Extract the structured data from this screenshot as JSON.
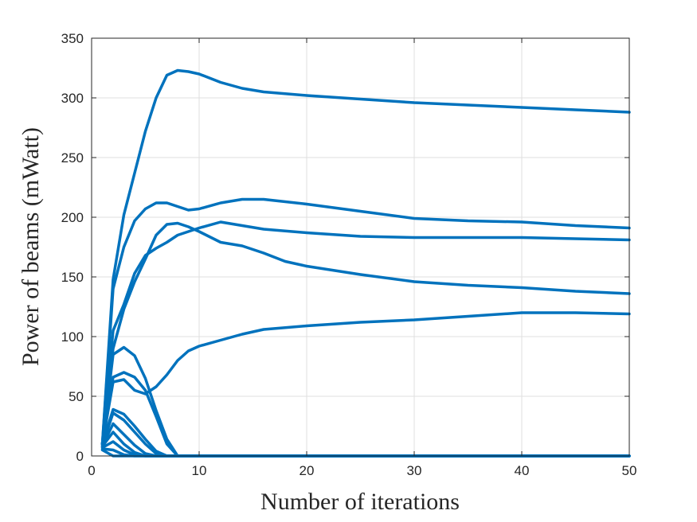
{
  "chart_data": {
    "type": "line",
    "xlabel": "Number of iterations",
    "ylabel": "Power of beams (mWatt)",
    "xlim": [
      0,
      50
    ],
    "ylim": [
      0,
      350
    ],
    "x_ticks": [
      0,
      10,
      20,
      30,
      40,
      50
    ],
    "y_ticks": [
      0,
      50,
      100,
      150,
      200,
      250,
      300,
      350
    ],
    "grid": true,
    "line_color": "#0072BD",
    "series": [
      {
        "points": [
          [
            1,
            10
          ],
          [
            2,
            148
          ],
          [
            3,
            202
          ],
          [
            4,
            237
          ],
          [
            5,
            272
          ],
          [
            6,
            300
          ],
          [
            7,
            319
          ],
          [
            8,
            323
          ],
          [
            9,
            322
          ],
          [
            10,
            320
          ],
          [
            12,
            313
          ],
          [
            14,
            308
          ],
          [
            16,
            305
          ],
          [
            20,
            302
          ],
          [
            25,
            299
          ],
          [
            30,
            296
          ],
          [
            35,
            294
          ],
          [
            40,
            292
          ],
          [
            45,
            290
          ],
          [
            50,
            288
          ]
        ]
      },
      {
        "points": [
          [
            1,
            10
          ],
          [
            2,
            140
          ],
          [
            3,
            175
          ],
          [
            4,
            197
          ],
          [
            5,
            207
          ],
          [
            6,
            212
          ],
          [
            7,
            212
          ],
          [
            8,
            209
          ],
          [
            9,
            206
          ],
          [
            10,
            207
          ],
          [
            12,
            212
          ],
          [
            14,
            215
          ],
          [
            16,
            215
          ],
          [
            20,
            211
          ],
          [
            25,
            205
          ],
          [
            30,
            199
          ],
          [
            35,
            197
          ],
          [
            40,
            196
          ],
          [
            45,
            193
          ],
          [
            50,
            191
          ]
        ]
      },
      {
        "points": [
          [
            1,
            10
          ],
          [
            2,
            105
          ],
          [
            3,
            127
          ],
          [
            4,
            153
          ],
          [
            5,
            168
          ],
          [
            6,
            174
          ],
          [
            7,
            179
          ],
          [
            8,
            185
          ],
          [
            10,
            191
          ],
          [
            12,
            196
          ],
          [
            14,
            193
          ],
          [
            16,
            190
          ],
          [
            20,
            187
          ],
          [
            25,
            184
          ],
          [
            30,
            183
          ],
          [
            35,
            183
          ],
          [
            40,
            183
          ],
          [
            45,
            182
          ],
          [
            50,
            181
          ]
        ]
      },
      {
        "points": [
          [
            1,
            10
          ],
          [
            2,
            90
          ],
          [
            3,
            123
          ],
          [
            4,
            146
          ],
          [
            5,
            165
          ],
          [
            6,
            185
          ],
          [
            7,
            194
          ],
          [
            8,
            195
          ],
          [
            9,
            192
          ],
          [
            10,
            188
          ],
          [
            12,
            179
          ],
          [
            14,
            176
          ],
          [
            16,
            170
          ],
          [
            18,
            163
          ],
          [
            20,
            159
          ],
          [
            25,
            152
          ],
          [
            30,
            146
          ],
          [
            35,
            143
          ],
          [
            40,
            141
          ],
          [
            45,
            138
          ],
          [
            50,
            136
          ]
        ]
      },
      {
        "points": [
          [
            1,
            10
          ],
          [
            2,
            62
          ],
          [
            3,
            64
          ],
          [
            4,
            55
          ],
          [
            5,
            52
          ],
          [
            6,
            58
          ],
          [
            7,
            68
          ],
          [
            8,
            80
          ],
          [
            9,
            88
          ],
          [
            10,
            92
          ],
          [
            12,
            97
          ],
          [
            14,
            102
          ],
          [
            16,
            106
          ],
          [
            20,
            109
          ],
          [
            25,
            112
          ],
          [
            30,
            114
          ],
          [
            35,
            117
          ],
          [
            40,
            120
          ],
          [
            45,
            120
          ],
          [
            50,
            119
          ]
        ]
      },
      {
        "points": [
          [
            1,
            10
          ],
          [
            2,
            85
          ],
          [
            3,
            91
          ],
          [
            4,
            84
          ],
          [
            5,
            65
          ],
          [
            6,
            38
          ],
          [
            7,
            14
          ],
          [
            8,
            0
          ],
          [
            10,
            0
          ],
          [
            20,
            0
          ],
          [
            30,
            0
          ],
          [
            40,
            0
          ],
          [
            50,
            0
          ]
        ]
      },
      {
        "points": [
          [
            1,
            10
          ],
          [
            2,
            66
          ],
          [
            3,
            70
          ],
          [
            4,
            66
          ],
          [
            5,
            55
          ],
          [
            6,
            33
          ],
          [
            7,
            10
          ],
          [
            8,
            0
          ],
          [
            10,
            0
          ],
          [
            20,
            0
          ],
          [
            30,
            0
          ],
          [
            40,
            0
          ],
          [
            50,
            0
          ]
        ]
      },
      {
        "points": [
          [
            1,
            10
          ],
          [
            2,
            39
          ],
          [
            3,
            35
          ],
          [
            4,
            25
          ],
          [
            5,
            14
          ],
          [
            6,
            4
          ],
          [
            7,
            0
          ],
          [
            10,
            0
          ],
          [
            20,
            0
          ],
          [
            30,
            0
          ],
          [
            40,
            0
          ],
          [
            50,
            0
          ]
        ]
      },
      {
        "points": [
          [
            1,
            9
          ],
          [
            2,
            36
          ],
          [
            3,
            30
          ],
          [
            4,
            20
          ],
          [
            5,
            10
          ],
          [
            6,
            2
          ],
          [
            7,
            0
          ],
          [
            10,
            0
          ],
          [
            20,
            0
          ],
          [
            30,
            0
          ],
          [
            40,
            0
          ],
          [
            50,
            0
          ]
        ]
      },
      {
        "points": [
          [
            1,
            8
          ],
          [
            2,
            27
          ],
          [
            3,
            18
          ],
          [
            4,
            9
          ],
          [
            5,
            2
          ],
          [
            6,
            0
          ],
          [
            10,
            0
          ],
          [
            20,
            0
          ],
          [
            30,
            0
          ],
          [
            40,
            0
          ],
          [
            50,
            0
          ]
        ]
      },
      {
        "points": [
          [
            1,
            8
          ],
          [
            2,
            20
          ],
          [
            3,
            10
          ],
          [
            4,
            3
          ],
          [
            5,
            0
          ],
          [
            10,
            0
          ],
          [
            20,
            0
          ],
          [
            30,
            0
          ],
          [
            40,
            0
          ],
          [
            50,
            0
          ]
        ]
      },
      {
        "points": [
          [
            1,
            7
          ],
          [
            2,
            12
          ],
          [
            3,
            5
          ],
          [
            4,
            1
          ],
          [
            5,
            0
          ],
          [
            10,
            0
          ],
          [
            20,
            0
          ],
          [
            30,
            0
          ],
          [
            40,
            0
          ],
          [
            50,
            0
          ]
        ]
      },
      {
        "points": [
          [
            1,
            6
          ],
          [
            2,
            5
          ],
          [
            3,
            1
          ],
          [
            4,
            0
          ],
          [
            10,
            0
          ],
          [
            20,
            0
          ],
          [
            30,
            0
          ],
          [
            40,
            0
          ],
          [
            50,
            0
          ]
        ]
      },
      {
        "points": [
          [
            1,
            5
          ],
          [
            2,
            0
          ],
          [
            3,
            0
          ],
          [
            10,
            0
          ],
          [
            20,
            0
          ],
          [
            30,
            0
          ],
          [
            40,
            0
          ],
          [
            50,
            0
          ]
        ]
      }
    ]
  }
}
